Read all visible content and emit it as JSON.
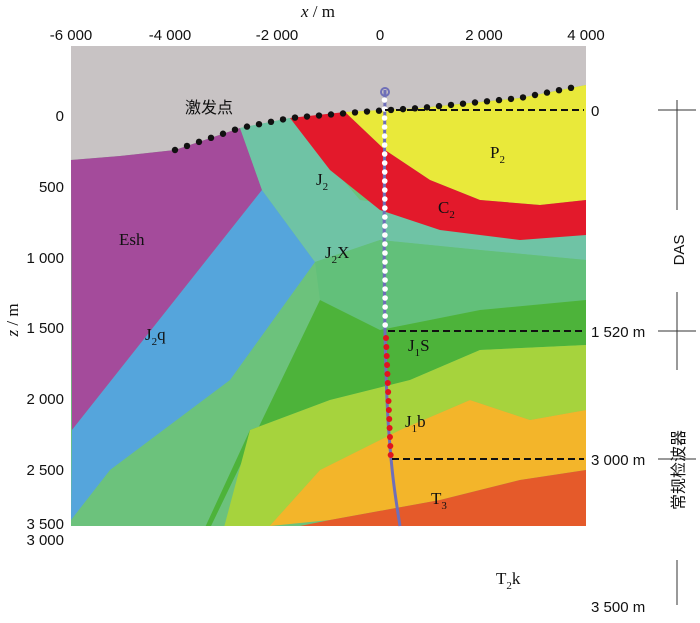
{
  "axes": {
    "x_label_italic": "x",
    "x_label_unit": " / m",
    "z_label_italic": "z",
    "z_label_unit": " / m",
    "x_ticks": [
      "-6 000",
      "-4 000",
      "-2 000",
      "0",
      "2 000",
      "4 000"
    ],
    "z_ticks": [
      "0",
      "500",
      "1 000",
      "1 500",
      "2 000",
      "2 500",
      "3 000",
      "3 500"
    ]
  },
  "shot_label": "激发点",
  "layers": {
    "P2": {
      "base": "P",
      "sub": "2",
      "suffix": "",
      "color": "#e9e93a"
    },
    "C2": {
      "base": "C",
      "sub": "2",
      "suffix": "",
      "color": "#e3192b"
    },
    "J2": {
      "base": "J",
      "sub": "2",
      "suffix": "",
      "color": "#6fc3a5"
    },
    "J2X": {
      "base": "J",
      "sub": "2",
      "suffix": "X",
      "color": "#62c07a"
    },
    "Esh": {
      "base": "Esh",
      "sub": "",
      "suffix": "",
      "color": "#a44b9b"
    },
    "J2q": {
      "base": "J",
      "sub": "2",
      "suffix": "q",
      "color": "#55a5dc"
    },
    "J1S": {
      "base": "J",
      "sub": "1",
      "suffix": "S",
      "color": "#4db33a"
    },
    "J1b": {
      "base": "J",
      "sub": "1",
      "suffix": "b",
      "color": "#a6d33d"
    },
    "T3": {
      "base": "T",
      "sub": "3",
      "suffix": "",
      "color": "#f3b52a"
    },
    "T2k": {
      "base": "T",
      "sub": "2",
      "suffix": "k",
      "color": "#e55a2a"
    }
  },
  "right_labels": {
    "top": "0",
    "das": "DAS",
    "depth1": "1 520 m",
    "conventional": "常规检波器",
    "depth2": "3 000 m",
    "bottom": "3 500 m"
  },
  "colors": {
    "air": "#c8c3c4",
    "shot_dot": "#111111",
    "das_dot": "#ffffff",
    "geophone_dot": "#e0141e",
    "well": "#6f6fb8"
  }
}
